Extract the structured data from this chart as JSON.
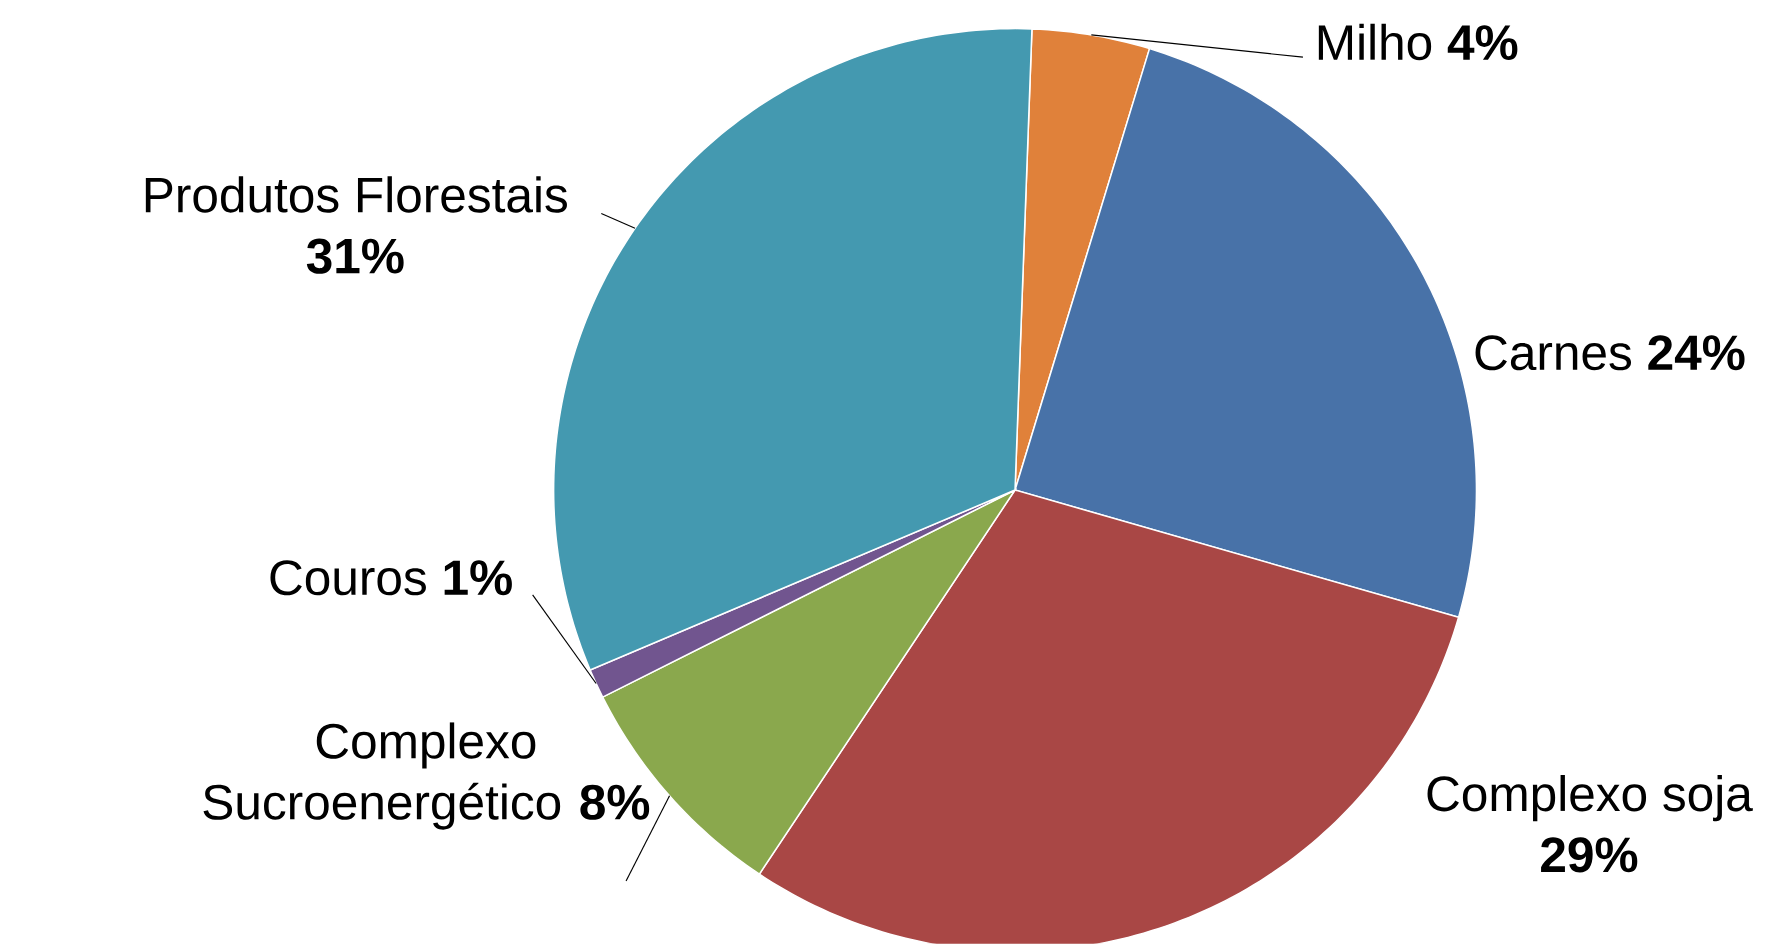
{
  "chart_data": {
    "type": "pie",
    "categories": [
      "Milho",
      "Carnes",
      "Complexo soja",
      "Complexo Sucroenergético",
      "Couros",
      "Produtos Florestais"
    ],
    "values": [
      4,
      24,
      29,
      8,
      1,
      31
    ],
    "value_labels": [
      "4%",
      "24%",
      "29%",
      "8%",
      "1%",
      "31%"
    ],
    "colors": [
      "#e0813a",
      "#4872a8",
      "#a94745",
      "#8aa84d",
      "#71558f",
      "#4499b0"
    ],
    "legend": false
  }
}
